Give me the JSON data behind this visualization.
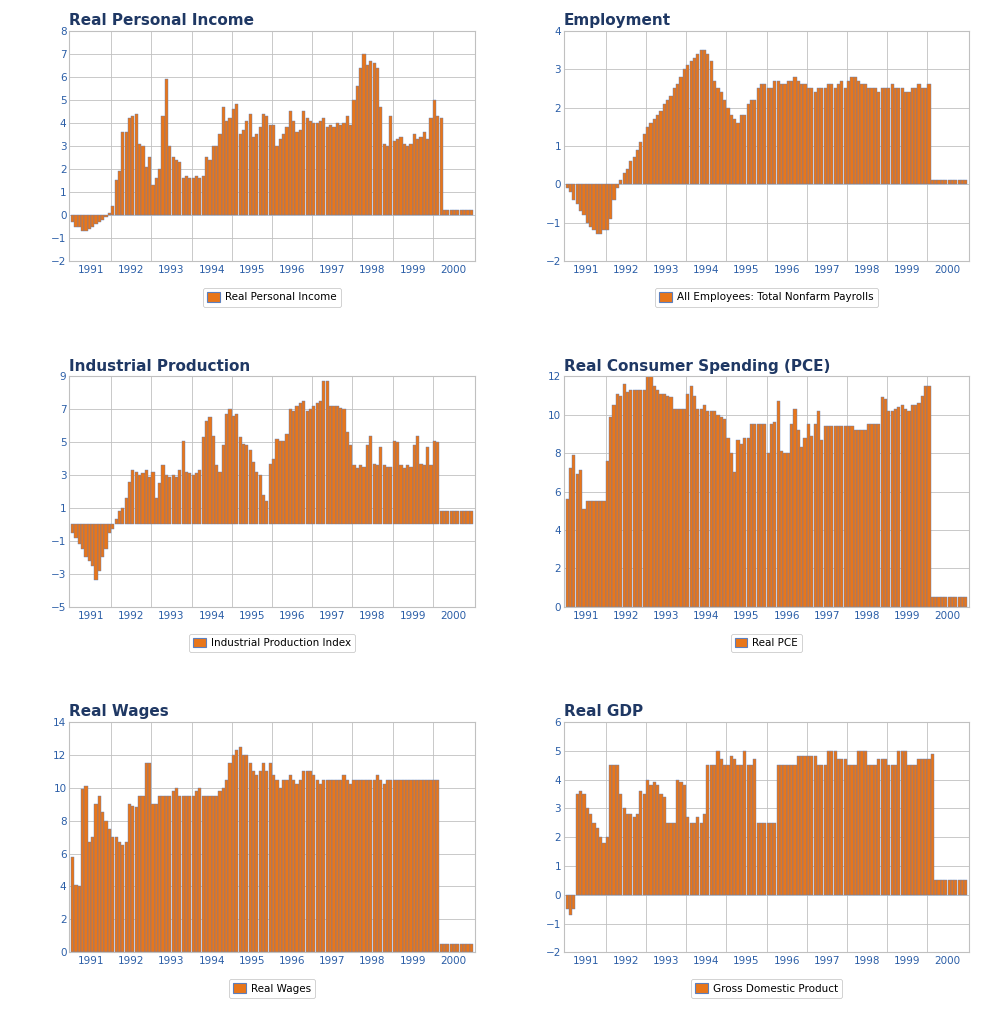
{
  "charts": {
    "rpi": {
      "title": "Real Personal Income",
      "legend": "Real Personal Income",
      "ylim": [
        -2.0,
        8.0
      ],
      "yticks": [
        -2.0,
        -1.0,
        0.0,
        1.0,
        2.0,
        3.0,
        4.0,
        5.0,
        6.0,
        7.0,
        8.0
      ],
      "values": [
        -0.3,
        -0.5,
        -0.5,
        -0.7,
        -0.7,
        -0.6,
        -0.5,
        -0.4,
        -0.3,
        -0.2,
        -0.1,
        0.1,
        0.4,
        1.5,
        1.9,
        3.6,
        3.6,
        4.2,
        4.3,
        4.4,
        3.1,
        3.0,
        2.1,
        2.5,
        1.3,
        1.6,
        2.0,
        4.3,
        5.9,
        3.0,
        2.5,
        2.4,
        2.3,
        1.6,
        1.7,
        1.6,
        1.6,
        1.7,
        1.6,
        1.7,
        2.5,
        2.4,
        3.0,
        3.0,
        3.5,
        4.7,
        4.1,
        4.2,
        4.6,
        4.8,
        3.5,
        3.7,
        4.1,
        4.4,
        3.4,
        3.5,
        3.8,
        4.4,
        4.3,
        3.9,
        3.9,
        3.0,
        3.3,
        3.5,
        3.8,
        4.5,
        4.1,
        3.6,
        3.7,
        4.5,
        4.2,
        4.1,
        4.0,
        4.0,
        4.1,
        4.2,
        3.8,
        3.9,
        3.8,
        4.0,
        3.9,
        4.0,
        4.3,
        3.9,
        5.0,
        5.6,
        6.4,
        7.0,
        6.5,
        6.7,
        6.6,
        6.4,
        4.7,
        3.1,
        3.0,
        4.3,
        3.2,
        3.3,
        3.4,
        3.1,
        3.0,
        3.1,
        3.5,
        3.3,
        3.4,
        3.6,
        3.3,
        4.2,
        5.0,
        4.3,
        4.2,
        0.2,
        0.2,
        0.2,
        0.2,
        0.2,
        0.2,
        0.2,
        0.2,
        0.2
      ]
    },
    "emp": {
      "title": "Employment",
      "legend": "All Employees: Total Nonfarm Payrolls",
      "ylim": [
        -2.0,
        4.0
      ],
      "yticks": [
        -2.0,
        -1.0,
        0.0,
        1.0,
        2.0,
        3.0,
        4.0
      ],
      "values": [
        -0.1,
        -0.2,
        -0.4,
        -0.5,
        -0.7,
        -0.8,
        -1.0,
        -1.1,
        -1.2,
        -1.3,
        -1.3,
        -1.2,
        -1.2,
        -0.9,
        -0.4,
        -0.1,
        0.1,
        0.3,
        0.4,
        0.6,
        0.7,
        0.9,
        1.1,
        1.3,
        1.5,
        1.6,
        1.7,
        1.8,
        1.9,
        2.1,
        2.2,
        2.3,
        2.5,
        2.6,
        2.8,
        3.0,
        3.1,
        3.2,
        3.3,
        3.4,
        3.5,
        3.5,
        3.4,
        3.2,
        2.7,
        2.5,
        2.4,
        2.2,
        2.0,
        1.8,
        1.7,
        1.6,
        1.8,
        1.8,
        2.1,
        2.2,
        2.2,
        2.5,
        2.6,
        2.6,
        2.5,
        2.5,
        2.7,
        2.7,
        2.6,
        2.6,
        2.7,
        2.7,
        2.8,
        2.7,
        2.6,
        2.6,
        2.5,
        2.5,
        2.4,
        2.5,
        2.5,
        2.5,
        2.6,
        2.6,
        2.5,
        2.6,
        2.7,
        2.5,
        2.7,
        2.8,
        2.8,
        2.7,
        2.6,
        2.6,
        2.5,
        2.5,
        2.5,
        2.4,
        2.5,
        2.5,
        2.5,
        2.6,
        2.5,
        2.5,
        2.5,
        2.4,
        2.4,
        2.5,
        2.5,
        2.6,
        2.5,
        2.5,
        2.6,
        0.1,
        0.1,
        0.1,
        0.1,
        0.1,
        0.1,
        0.1,
        0.1,
        0.1,
        0.1,
        0.1
      ]
    },
    "ip": {
      "title": "Industrial Production",
      "legend": "Industrial Production Index",
      "ylim": [
        -5.0,
        9.0
      ],
      "yticks": [
        -5.0,
        -3.0,
        -1.0,
        1.0,
        3.0,
        5.0,
        7.0,
        9.0
      ],
      "values": [
        -0.5,
        -0.8,
        -1.2,
        -1.5,
        -2.0,
        -2.2,
        -2.5,
        -3.4,
        -2.8,
        -2.0,
        -1.5,
        -0.5,
        -0.3,
        0.3,
        0.8,
        1.0,
        1.6,
        2.6,
        3.3,
        3.2,
        3.0,
        3.1,
        3.3,
        2.9,
        3.2,
        1.6,
        2.5,
        3.6,
        3.0,
        2.9,
        3.0,
        2.9,
        3.3,
        5.1,
        3.2,
        3.1,
        3.0,
        3.1,
        3.3,
        5.3,
        6.3,
        6.5,
        5.4,
        3.6,
        3.2,
        4.8,
        6.7,
        7.0,
        6.6,
        6.7,
        5.3,
        4.9,
        4.8,
        4.5,
        3.8,
        3.2,
        3.0,
        1.8,
        1.4,
        3.7,
        4.0,
        5.2,
        5.1,
        5.1,
        5.5,
        7.0,
        6.9,
        7.2,
        7.4,
        7.5,
        6.9,
        7.0,
        7.2,
        7.4,
        7.5,
        8.7,
        8.7,
        7.2,
        7.2,
        7.2,
        7.1,
        7.0,
        5.6,
        4.8,
        3.6,
        3.4,
        3.6,
        3.5,
        4.8,
        5.4,
        3.7,
        3.6,
        4.7,
        3.6,
        3.5,
        3.5,
        5.1,
        5.0,
        3.6,
        3.4,
        3.6,
        3.5,
        4.8,
        5.4,
        3.7,
        3.6,
        4.7,
        3.6,
        5.1,
        5.0,
        0.8,
        0.8,
        0.8,
        0.8,
        0.8,
        0.8,
        0.8,
        0.8,
        0.8,
        0.8
      ]
    },
    "pce": {
      "title": "Real Consumer Spending (PCE)",
      "legend": "Real PCE",
      "ylim": [
        0.0,
        12.0
      ],
      "yticks": [
        0.0,
        2.0,
        4.0,
        6.0,
        8.0,
        10.0,
        12.0
      ],
      "values": [
        5.6,
        7.2,
        7.9,
        6.9,
        7.1,
        5.1,
        5.5,
        5.5,
        5.5,
        5.5,
        5.5,
        5.5,
        7.6,
        9.9,
        10.5,
        11.1,
        11.0,
        11.6,
        11.2,
        11.3,
        11.3,
        11.3,
        11.3,
        11.3,
        12.0,
        12.0,
        11.5,
        11.3,
        11.1,
        11.1,
        11.0,
        10.9,
        10.3,
        10.3,
        10.3,
        10.3,
        11.1,
        11.5,
        11.0,
        10.3,
        10.3,
        10.5,
        10.2,
        10.2,
        10.2,
        10.0,
        9.9,
        9.8,
        8.8,
        8.0,
        7.0,
        8.7,
        8.5,
        8.8,
        8.8,
        9.5,
        9.5,
        9.5,
        9.5,
        9.5,
        8.0,
        9.5,
        9.6,
        10.7,
        8.1,
        8.0,
        8.0,
        9.5,
        10.3,
        9.2,
        8.3,
        8.8,
        9.5,
        8.9,
        9.5,
        10.2,
        8.7,
        9.4,
        9.4,
        9.4,
        9.4,
        9.4,
        9.4,
        9.4,
        9.4,
        9.4,
        9.2,
        9.2,
        9.2,
        9.2,
        9.5,
        9.5,
        9.5,
        9.5,
        10.9,
        10.8,
        10.2,
        10.2,
        10.3,
        10.4,
        10.5,
        10.3,
        10.2,
        10.5,
        10.5,
        10.6,
        11.0,
        11.5,
        11.5,
        0.5,
        0.5,
        0.5,
        0.5,
        0.5,
        0.5,
        0.5,
        0.5,
        0.5,
        0.5,
        0.5
      ]
    },
    "rw": {
      "title": "Real Wages",
      "legend": "Real Wages",
      "ylim": [
        0.0,
        14.0
      ],
      "yticks": [
        0.0,
        2.0,
        4.0,
        6.0,
        8.0,
        10.0,
        12.0,
        14.0
      ],
      "values": [
        5.8,
        4.1,
        4.0,
        9.9,
        10.1,
        6.7,
        7.0,
        9.0,
        9.5,
        8.5,
        8.0,
        7.5,
        7.0,
        7.0,
        6.7,
        6.5,
        6.7,
        9.0,
        8.9,
        8.8,
        9.5,
        9.5,
        11.5,
        11.5,
        9.0,
        9.0,
        9.5,
        9.5,
        9.5,
        9.5,
        9.8,
        10.0,
        9.5,
        9.5,
        9.5,
        9.5,
        9.5,
        9.8,
        10.0,
        9.5,
        9.5,
        9.5,
        9.5,
        9.5,
        9.8,
        10.0,
        10.5,
        11.5,
        12.0,
        12.3,
        12.5,
        12.0,
        12.0,
        11.5,
        11.0,
        10.8,
        11.0,
        11.5,
        11.0,
        11.5,
        10.8,
        10.5,
        10.0,
        10.5,
        10.5,
        10.8,
        10.5,
        10.2,
        10.5,
        11.0,
        11.0,
        11.0,
        10.8,
        10.5,
        10.2,
        10.5,
        10.5,
        10.5,
        10.5,
        10.5,
        10.5,
        10.8,
        10.5,
        10.2,
        10.5,
        10.5,
        10.5,
        10.5,
        10.5,
        10.5,
        10.5,
        10.8,
        10.5,
        10.2,
        10.5,
        10.5,
        10.5,
        10.5,
        10.5,
        10.5,
        10.5,
        10.5,
        10.5,
        10.5,
        10.5,
        10.5,
        10.5,
        10.5,
        10.5,
        10.5,
        0.5,
        0.5,
        0.5,
        0.5,
        0.5,
        0.5,
        0.5,
        0.5,
        0.5,
        0.5
      ]
    },
    "gdp": {
      "title": "Real GDP",
      "legend": "Gross Domestic Product",
      "ylim": [
        -2.0,
        6.0
      ],
      "yticks": [
        -2.0,
        -1.0,
        0.0,
        1.0,
        2.0,
        3.0,
        4.0,
        5.0,
        6.0
      ],
      "values": [
        -0.5,
        -0.7,
        -0.5,
        3.5,
        3.6,
        3.5,
        3.0,
        2.8,
        2.5,
        2.3,
        2.0,
        1.8,
        2.0,
        4.5,
        4.5,
        4.5,
        3.5,
        3.0,
        2.8,
        2.8,
        2.7,
        2.8,
        3.6,
        3.5,
        4.0,
        3.8,
        3.9,
        3.8,
        3.5,
        3.4,
        2.5,
        2.5,
        2.5,
        4.0,
        3.9,
        3.8,
        2.7,
        2.5,
        2.5,
        2.7,
        2.5,
        2.8,
        4.5,
        4.5,
        4.5,
        5.0,
        4.7,
        4.5,
        4.5,
        4.8,
        4.7,
        4.5,
        4.5,
        5.0,
        4.5,
        4.5,
        4.7,
        2.5,
        2.5,
        2.5,
        2.5,
        2.5,
        2.5,
        4.5,
        4.5,
        4.5,
        4.5,
        4.5,
        4.5,
        4.8,
        4.8,
        4.8,
        4.8,
        4.8,
        4.8,
        4.5,
        4.5,
        4.5,
        5.0,
        5.0,
        5.0,
        4.7,
        4.7,
        4.7,
        4.5,
        4.5,
        4.5,
        5.0,
        5.0,
        5.0,
        4.5,
        4.5,
        4.5,
        4.7,
        4.7,
        4.7,
        4.5,
        4.5,
        4.5,
        5.0,
        5.0,
        5.0,
        4.5,
        4.5,
        4.5,
        4.7,
        4.7,
        4.7,
        4.7,
        4.9,
        0.5,
        0.5,
        0.5,
        0.5,
        0.5,
        0.5,
        0.5,
        0.5,
        0.5,
        0.5
      ]
    }
  },
  "bar_color": "#E8761A",
  "bar_edge_color": "#5B7FBE",
  "title_color": "#1F3864",
  "bg_color": "#FFFFFF",
  "plot_bg_color": "#FFFFFF",
  "grid_color": "#C0C0C0",
  "tick_color": "#2B5EA7",
  "spine_color": "#C0C0C0"
}
